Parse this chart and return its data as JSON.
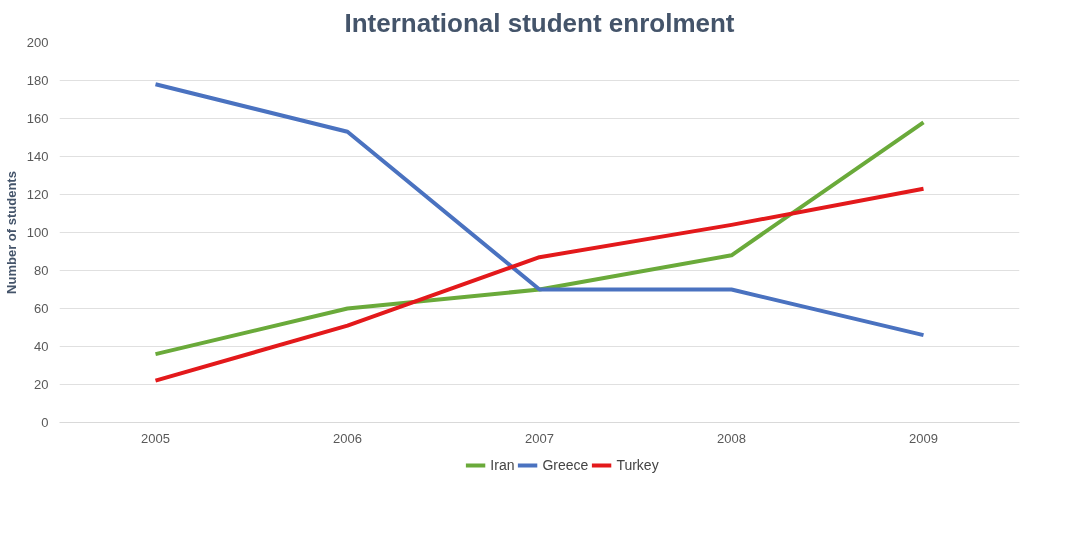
{
  "chart_data": {
    "type": "line",
    "title": "International student enrolment",
    "ylabel": "Number of students",
    "categories": [
      "2005",
      "2006",
      "2007",
      "2008",
      "2009"
    ],
    "series": [
      {
        "name": "Iran",
        "color": "#6aaa3a",
        "values": [
          36,
          60,
          70,
          88,
          158
        ]
      },
      {
        "name": "Greece",
        "color": "#4a72c0",
        "values": [
          178,
          153,
          70,
          70,
          46
        ]
      },
      {
        "name": "Turkey",
        "color": "#e3191b",
        "values": [
          22,
          51,
          87,
          104,
          123
        ]
      }
    ],
    "ylim": [
      0,
      200
    ],
    "yticks": [
      0,
      20,
      40,
      60,
      80,
      100,
      120,
      140,
      160,
      180,
      200
    ],
    "grid": "y",
    "legend": "bottom",
    "marker": "none",
    "line_style": "solid"
  }
}
